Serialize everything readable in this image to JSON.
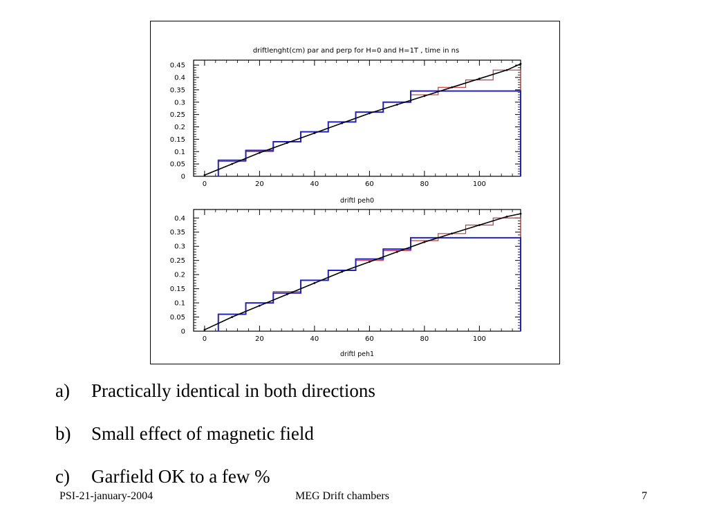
{
  "chart_data": {
    "type": "line",
    "title": "driftlenght(cm) par and perp for H=0 and H=1T , time in ns",
    "colors": {
      "red": "#cc3333",
      "blue": "#2020c8",
      "fit": "#000000"
    },
    "panels": [
      {
        "xlabel": "driftl peh0",
        "xlim": [
          -4,
          115
        ],
        "ylim": [
          0,
          0.47
        ],
        "x_ticks": [
          0,
          20,
          40,
          60,
          80,
          100
        ],
        "x_tick_labels": [
          "0",
          "20",
          "40",
          "60",
          "80",
          "100"
        ],
        "y_ticks": [
          0,
          0.05,
          0.1,
          0.15,
          0.2,
          0.25,
          0.3,
          0.35,
          0.4,
          0.45
        ],
        "y_tick_labels": [
          "0",
          "0.05",
          "0.1",
          "0.15",
          "0.2",
          "0.25",
          "0.3",
          "0.35",
          "0.4",
          "0.45"
        ],
        "series": [
          {
            "color": "red",
            "style": "step",
            "edges": [
              5,
              15,
              25,
              35,
              45,
              55,
              65,
              75,
              85,
              95,
              105,
              115
            ],
            "values": [
              0.06,
              0.1,
              0.14,
              0.18,
              0.22,
              0.26,
              0.3,
              0.33,
              0.36,
              0.39,
              0.43
            ]
          },
          {
            "color": "blue",
            "style": "step",
            "edges": [
              5,
              15,
              25,
              35,
              45,
              55,
              65,
              75,
              115
            ],
            "values": [
              0.065,
              0.105,
              0.14,
              0.18,
              0.22,
              0.26,
              0.3,
              0.345
            ]
          },
          {
            "color": "fit",
            "style": "line",
            "x": [
              0,
              10,
              20,
              30,
              40,
              50,
              60,
              70,
              80,
              90,
              100,
              110,
              115
            ],
            "values": [
              0.005,
              0.05,
              0.095,
              0.135,
              0.175,
              0.215,
              0.255,
              0.29,
              0.325,
              0.36,
              0.395,
              0.43,
              0.455
            ]
          }
        ]
      },
      {
        "xlabel": "driftl peh1",
        "xlim": [
          -4,
          115
        ],
        "ylim": [
          0,
          0.43
        ],
        "x_ticks": [
          0,
          20,
          40,
          60,
          80,
          100
        ],
        "x_tick_labels": [
          "0",
          "20",
          "40",
          "60",
          "80",
          "100"
        ],
        "y_ticks": [
          0,
          0.05,
          0.1,
          0.15,
          0.2,
          0.25,
          0.3,
          0.35,
          0.4
        ],
        "y_tick_labels": [
          "0",
          "0.05",
          "0.1",
          "0.15",
          "0.2",
          "0.25",
          "0.3",
          "0.35",
          "0.4"
        ],
        "series": [
          {
            "color": "red",
            "style": "step",
            "edges": [
              5,
              15,
              25,
              35,
              45,
              55,
              65,
              75,
              85,
              95,
              105,
              115
            ],
            "values": [
              0.06,
              0.1,
              0.14,
              0.18,
              0.215,
              0.25,
              0.285,
              0.32,
              0.345,
              0.375,
              0.4
            ]
          },
          {
            "color": "blue",
            "style": "step",
            "edges": [
              5,
              15,
              25,
              35,
              45,
              55,
              65,
              75,
              115
            ],
            "values": [
              0.06,
              0.1,
              0.135,
              0.18,
              0.215,
              0.255,
              0.29,
              0.33
            ]
          },
          {
            "color": "fit",
            "style": "line",
            "x": [
              0,
              10,
              20,
              30,
              40,
              50,
              60,
              70,
              80,
              90,
              100,
              110,
              115
            ],
            "values": [
              0.005,
              0.05,
              0.09,
              0.13,
              0.17,
              0.21,
              0.245,
              0.28,
              0.315,
              0.345,
              0.375,
              0.405,
              0.415
            ]
          }
        ]
      }
    ]
  },
  "bullets": [
    {
      "marker": "a)",
      "text": "Practically identical in both directions"
    },
    {
      "marker": "b)",
      "text": "Small effect of magnetic field"
    },
    {
      "marker": "c)",
      "text": "Garfield OK to a few %"
    }
  ],
  "footer": {
    "left": "PSI-21-january-2004",
    "center": "MEG Drift chambers",
    "right": "7"
  }
}
